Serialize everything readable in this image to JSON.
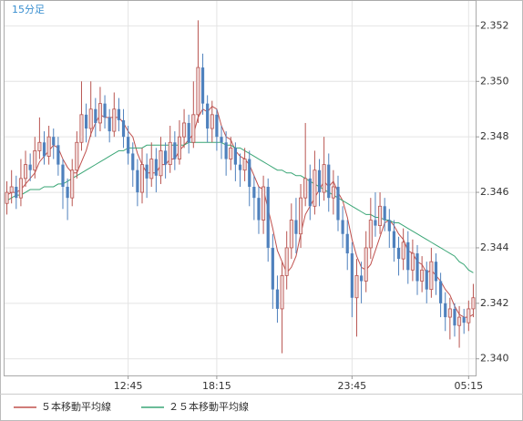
{
  "chart_data": {
    "type": "candlestick",
    "title": "15分足",
    "categories": [
      null,
      null,
      null,
      null,
      null,
      null,
      null,
      null,
      null,
      null,
      null,
      null,
      null,
      null,
      null,
      null,
      null,
      null,
      null,
      null,
      null,
      null,
      null,
      null,
      null,
      null,
      "12:45",
      null,
      null,
      null,
      null,
      null,
      null,
      null,
      null,
      null,
      null,
      null,
      null,
      null,
      null,
      null,
      null,
      null,
      null,
      "18:15",
      null,
      null,
      null,
      null,
      null,
      null,
      null,
      null,
      null,
      null,
      null,
      null,
      null,
      null,
      null,
      null,
      null,
      null,
      null,
      null,
      null,
      null,
      null,
      null,
      null,
      null,
      null,
      null,
      "23:45",
      null,
      null,
      null,
      null,
      null,
      null,
      null,
      null,
      null,
      null,
      null,
      null,
      null,
      null,
      null,
      null,
      null,
      null,
      null,
      null,
      null,
      null,
      null,
      null,
      "05:15",
      null
    ],
    "open": [
      2.3456,
      2.346,
      2.3462,
      2.3458,
      2.3465,
      2.347,
      2.3468,
      2.3475,
      2.3478,
      2.3473,
      2.348,
      2.3477,
      2.347,
      2.3462,
      2.3458,
      2.3468,
      2.3478,
      2.3488,
      2.3483,
      2.349,
      2.3485,
      2.3492,
      2.3487,
      2.3482,
      2.349,
      2.3486,
      2.348,
      2.3474,
      2.3468,
      2.346,
      2.347,
      2.3465,
      2.3472,
      2.3466,
      2.3475,
      2.347,
      2.3478,
      2.3472,
      2.348,
      2.3485,
      2.3478,
      2.3488,
      2.3505,
      2.3492,
      2.3483,
      2.3488,
      2.348,
      2.3478,
      2.3472,
      2.3476,
      2.347,
      2.3468,
      2.3472,
      2.3462,
      2.3458,
      2.345,
      2.3462,
      2.344,
      2.3425,
      2.3418,
      2.343,
      2.344,
      2.345,
      2.3445,
      2.3458,
      2.3465,
      2.3455,
      2.3468,
      2.346,
      2.347,
      2.3458,
      2.3462,
      2.345,
      2.3445,
      2.3438,
      2.3422,
      2.343,
      2.3428,
      2.344,
      2.345,
      2.3448,
      2.3455,
      2.345,
      2.3446,
      2.344,
      2.3436,
      2.3442,
      2.3432,
      2.3438,
      2.3428,
      2.3432,
      2.3425,
      2.3435,
      2.3428,
      2.342,
      2.3415,
      2.3418,
      2.3412,
      2.3415,
      2.3413,
      2.3418
    ],
    "high": [
      2.3464,
      2.3468,
      2.3466,
      2.3472,
      2.3475,
      2.3474,
      2.348,
      2.3487,
      2.3482,
      2.3484,
      2.3483,
      2.348,
      2.3472,
      2.3465,
      2.3472,
      2.3482,
      2.35,
      2.3492,
      2.35,
      2.3494,
      2.3498,
      2.3495,
      2.349,
      2.3496,
      2.3494,
      2.349,
      2.3484,
      2.3478,
      2.3472,
      2.3476,
      2.3474,
      2.3478,
      2.3476,
      2.348,
      2.3478,
      2.3484,
      2.3482,
      2.3486,
      2.349,
      2.3488,
      2.35,
      2.3522,
      2.351,
      2.3495,
      2.3493,
      2.349,
      2.3484,
      2.3482,
      2.348,
      2.3478,
      2.3474,
      2.3476,
      2.3475,
      2.3466,
      2.3462,
      2.3466,
      2.3465,
      2.3445,
      2.343,
      2.3435,
      2.3446,
      2.3456,
      2.3458,
      2.3463,
      2.3485,
      2.347,
      2.3475,
      2.3472,
      2.348,
      2.3474,
      2.3468,
      2.3466,
      2.3455,
      2.345,
      2.3442,
      2.3436,
      2.3435,
      2.3446,
      2.3458,
      2.346,
      2.346,
      2.3458,
      2.3454,
      2.345,
      2.3444,
      2.3447,
      2.3446,
      2.3443,
      2.3441,
      2.3437,
      2.3435,
      2.344,
      2.3438,
      2.3431,
      2.3424,
      2.3422,
      2.342,
      2.3419,
      2.3418,
      2.3421,
      2.3427
    ],
    "low": [
      2.3452,
      2.3456,
      2.3454,
      2.3455,
      2.3462,
      2.3464,
      2.3465,
      2.3472,
      2.347,
      2.347,
      2.3472,
      2.3466,
      2.3454,
      2.345,
      2.3455,
      2.3465,
      2.3475,
      2.3478,
      2.348,
      2.348,
      2.3482,
      2.3483,
      2.3478,
      2.348,
      2.3482,
      2.3476,
      2.347,
      2.3462,
      2.3455,
      2.3456,
      2.3458,
      2.3462,
      2.346,
      2.3463,
      2.3465,
      2.3467,
      2.3468,
      2.347,
      2.3476,
      2.3474,
      2.3476,
      2.3485,
      2.3488,
      2.3478,
      2.3478,
      2.3475,
      2.3472,
      2.3466,
      2.3468,
      2.3464,
      2.3462,
      2.3464,
      2.3455,
      2.345,
      2.3445,
      2.3445,
      2.3435,
      2.3418,
      2.3413,
      2.3402,
      2.3425,
      2.3436,
      2.3438,
      2.344,
      2.3455,
      2.345,
      2.3452,
      2.3455,
      2.3457,
      2.3453,
      2.3452,
      2.3446,
      2.344,
      2.3432,
      2.3415,
      2.3408,
      2.342,
      2.3424,
      2.3436,
      2.3444,
      2.3445,
      2.3446,
      2.344,
      2.3435,
      2.343,
      2.3432,
      2.3427,
      2.3428,
      2.3423,
      2.3424,
      2.342,
      2.3422,
      2.3423,
      2.3415,
      2.341,
      2.3407,
      2.3408,
      2.3404,
      2.3409,
      2.341,
      2.3415
    ],
    "close": [
      2.346,
      2.3462,
      2.3458,
      2.3465,
      2.347,
      2.3468,
      2.3475,
      2.3478,
      2.3473,
      2.348,
      2.3477,
      2.347,
      2.3462,
      2.3458,
      2.3468,
      2.3478,
      2.3488,
      2.3483,
      2.349,
      2.3485,
      2.3492,
      2.3487,
      2.3482,
      2.349,
      2.3486,
      2.348,
      2.3474,
      2.3468,
      2.346,
      2.347,
      2.3465,
      2.3472,
      2.3466,
      2.3475,
      2.347,
      2.3478,
      2.3472,
      2.348,
      2.3485,
      2.3478,
      2.3488,
      2.3505,
      2.3492,
      2.3483,
      2.3488,
      2.348,
      2.3478,
      2.3472,
      2.3476,
      2.347,
      2.3468,
      2.3472,
      2.3462,
      2.3458,
      2.345,
      2.3462,
      2.344,
      2.3425,
      2.3418,
      2.343,
      2.344,
      2.345,
      2.3445,
      2.3458,
      2.3465,
      2.3455,
      2.3468,
      2.346,
      2.347,
      2.3458,
      2.3462,
      2.345,
      2.3445,
      2.3438,
      2.3422,
      2.343,
      2.3428,
      2.344,
      2.345,
      2.3448,
      2.3455,
      2.345,
      2.3446,
      2.344,
      2.3436,
      2.3442,
      2.3432,
      2.3438,
      2.3428,
      2.3432,
      2.3425,
      2.3435,
      2.3428,
      2.342,
      2.3415,
      2.3418,
      2.3412,
      2.3415,
      2.3413,
      2.3418,
      2.3422
    ],
    "up_color": "#b85450",
    "down_color": "#4f81bd",
    "series": [
      {
        "name": "５本移動平均線",
        "color": "#c0504d",
        "values": [
          2.3459,
          2.346,
          2.346,
          2.3461,
          2.3463,
          2.3465,
          2.3467,
          2.3471,
          2.3473,
          2.3475,
          2.3477,
          2.3476,
          2.3472,
          2.3469,
          2.3467,
          2.3467,
          2.3471,
          2.3475,
          2.3481,
          2.3485,
          2.3488,
          2.3487,
          2.3487,
          2.3487,
          2.3487,
          2.3485,
          2.3482,
          2.348,
          2.3474,
          2.347,
          2.3467,
          2.3467,
          2.3467,
          2.347,
          2.347,
          2.3472,
          2.3472,
          2.3475,
          2.3477,
          2.3479,
          2.3481,
          2.3487,
          2.349,
          2.3489,
          2.3491,
          2.349,
          2.3484,
          2.348,
          2.3479,
          2.3475,
          2.3473,
          2.3472,
          2.347,
          2.3466,
          2.3462,
          2.3461,
          2.3454,
          2.3447,
          2.3439,
          2.3435,
          2.3431,
          2.3433,
          2.3437,
          2.3445,
          2.3452,
          2.3455,
          2.3458,
          2.3461,
          2.3464,
          2.3462,
          2.3464,
          2.346,
          2.3457,
          2.3451,
          2.3443,
          2.3437,
          2.3433,
          2.3432,
          2.3434,
          2.3439,
          2.3444,
          2.3449,
          2.345,
          2.3448,
          2.3445,
          2.3443,
          2.3439,
          2.3438,
          2.3435,
          2.3434,
          2.3431,
          2.3432,
          2.343,
          2.3428,
          2.3425,
          2.3423,
          2.3419,
          2.3416,
          2.3415,
          2.3415,
          2.3416
        ]
      },
      {
        "name": "２５本移動平均線",
        "color": "#3aa676",
        "values": [
          2.3457,
          2.3458,
          2.3459,
          2.3459,
          2.346,
          2.3461,
          2.3461,
          2.3461,
          2.3462,
          2.3462,
          2.3462,
          2.3463,
          2.3463,
          2.3464,
          2.3465,
          2.3466,
          2.3467,
          2.3468,
          2.3469,
          2.347,
          2.3471,
          2.3472,
          2.3473,
          2.3474,
          2.3475,
          2.3475,
          2.3476,
          2.3476,
          2.3476,
          2.3476,
          2.3477,
          2.3477,
          2.3477,
          2.3477,
          2.3477,
          2.3477,
          2.3477,
          2.3477,
          2.3477,
          2.3478,
          2.3478,
          2.3478,
          2.3478,
          2.3478,
          2.3478,
          2.3478,
          2.3478,
          2.3477,
          2.3477,
          2.3476,
          2.3476,
          2.3475,
          2.3474,
          2.3473,
          2.3472,
          2.3471,
          2.347,
          2.3469,
          2.3468,
          2.3468,
          2.3467,
          2.3467,
          2.3466,
          2.3466,
          2.3465,
          2.3464,
          2.3463,
          2.3462,
          2.3461,
          2.346,
          2.3459,
          2.3458,
          2.3457,
          2.3456,
          2.3455,
          2.3454,
          2.3453,
          2.3452,
          2.3452,
          2.3451,
          2.3451,
          2.345,
          2.345,
          2.3449,
          2.3449,
          2.3448,
          2.3447,
          2.3446,
          2.3445,
          2.3444,
          2.3443,
          2.3442,
          2.3441,
          2.344,
          2.3439,
          2.3438,
          2.3437,
          2.3435,
          2.3434,
          2.3432,
          2.3431
        ]
      }
    ],
    "ylim": [
      2.3394,
      2.3529
    ],
    "yticks": [
      {
        "value": 2.34,
        "label": "2.340"
      },
      2.342,
      2.344,
      2.346,
      2.348,
      {
        "value": 2.35,
        "label": "2.350"
      },
      2.352
    ],
    "grid": true
  }
}
